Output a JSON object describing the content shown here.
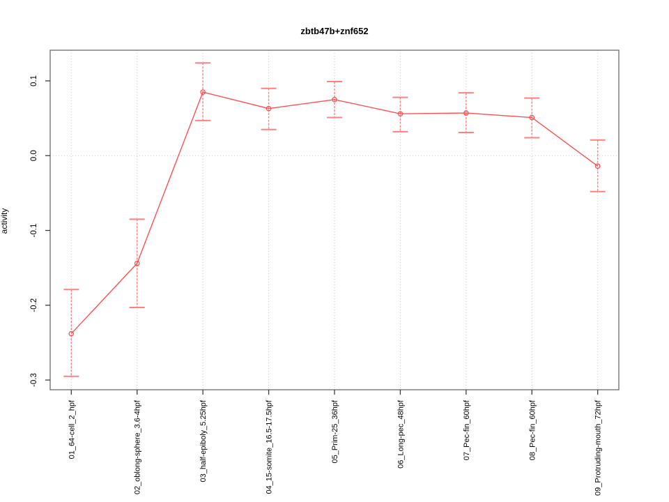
{
  "chart_data": {
    "type": "line",
    "title": "zbtb47b+znf652",
    "xlabel": "",
    "ylabel": "activity",
    "categories": [
      "01_64-cell_2_hpf",
      "02_oblong-sphere_3.6-4hpf",
      "03_half-epiboly_5.25hpf",
      "04_15-somite_16.5-17.5hpf",
      "05_Prim-25_36hpf",
      "06_Long-pec_48hpf",
      "07_Pec-fin_60hpf",
      "08_Pec-fin_60hpf",
      "09_Protruding-mouth_72hpf"
    ],
    "series": [
      {
        "name": "activity",
        "values": [
          -0.238,
          -0.144,
          0.085,
          0.063,
          0.075,
          0.056,
          0.057,
          0.051,
          -0.014
        ],
        "lower": [
          -0.295,
          -0.203,
          0.047,
          0.035,
          0.051,
          0.032,
          0.031,
          0.024,
          -0.048
        ],
        "upper": [
          -0.179,
          -0.085,
          0.124,
          0.09,
          0.099,
          0.078,
          0.084,
          0.077,
          0.021
        ]
      }
    ],
    "error_bars": true,
    "marker": "open-circle",
    "legend": "none",
    "yticks": [
      0.1,
      0.0,
      -0.1,
      -0.2,
      -0.3
    ],
    "ytick_labels": [
      "0.1",
      "0.0",
      "-0.1",
      "-0.2",
      "-0.3"
    ],
    "ylim": [
      -0.313,
      0.141
    ],
    "grid": {
      "vertical_per_category": true,
      "horizontal_zero_line": true,
      "style": "dotted"
    },
    "colors": {
      "series_line": "#ff5050",
      "marker": "#ff5050",
      "error_bar": "#ff8080",
      "grid": "#c9c9c9",
      "frame": "#757575",
      "tick": "#3c3c3c",
      "text": "#000000",
      "background": "#ffffff"
    }
  }
}
